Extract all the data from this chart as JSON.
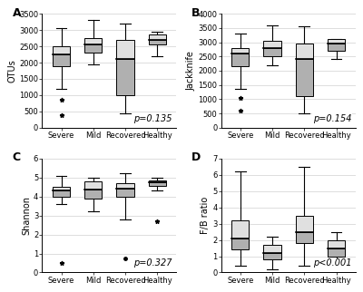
{
  "panels": [
    "A",
    "B",
    "C",
    "D"
  ],
  "categories": [
    "Severe",
    "Mild",
    "Recovered",
    "Healthy"
  ],
  "A": {
    "ylabel": "OTUs",
    "ylim": [
      0,
      3500
    ],
    "yticks": [
      0,
      500,
      1000,
      1500,
      2000,
      2500,
      3000,
      3500
    ],
    "pvalue": "p=0.135",
    "boxes": [
      {
        "q1": 1900,
        "median": 2250,
        "q3": 2500,
        "whislo": 1200,
        "whishi": 3050,
        "fliers": [
          850,
          400
        ],
        "flier_markers": [
          "*",
          "*"
        ]
      },
      {
        "q1": 2300,
        "median": 2550,
        "q3": 2750,
        "whislo": 1950,
        "whishi": 3300,
        "fliers": [],
        "flier_markers": []
      },
      {
        "q1": 1000,
        "median": 2100,
        "q3": 2700,
        "whislo": 450,
        "whishi": 3200,
        "fliers": [],
        "flier_markers": []
      },
      {
        "q1": 2550,
        "median": 2700,
        "q3": 2850,
        "whislo": 2200,
        "whishi": 2950,
        "fliers": [],
        "flier_markers": []
      }
    ]
  },
  "B": {
    "ylabel": "Jackknife",
    "ylim": [
      0,
      4000
    ],
    "yticks": [
      0,
      500,
      1000,
      1500,
      2000,
      2500,
      3000,
      3500,
      4000
    ],
    "pvalue": "p=0.154",
    "boxes": [
      {
        "q1": 2150,
        "median": 2600,
        "q3": 2800,
        "whislo": 1350,
        "whishi": 3300,
        "fliers": [
          1050,
          600
        ],
        "flier_markers": [
          "*",
          "*"
        ]
      },
      {
        "q1": 2500,
        "median": 2800,
        "q3": 3050,
        "whislo": 2200,
        "whishi": 3600,
        "fliers": [],
        "flier_markers": []
      },
      {
        "q1": 1100,
        "median": 2400,
        "q3": 2950,
        "whislo": 500,
        "whishi": 3550,
        "fliers": [],
        "flier_markers": []
      },
      {
        "q1": 2700,
        "median": 2950,
        "q3": 3100,
        "whislo": 2400,
        "whishi": 3100,
        "fliers": [],
        "flier_markers": []
      }
    ]
  },
  "C": {
    "ylabel": "Shannon",
    "ylim": [
      0,
      6
    ],
    "yticks": [
      0,
      1,
      2,
      3,
      4,
      5,
      6
    ],
    "pvalue": "p=0.327",
    "boxes": [
      {
        "q1": 4.0,
        "median": 4.3,
        "q3": 4.5,
        "whislo": 3.6,
        "whishi": 5.1,
        "fliers": [
          0.5
        ],
        "flier_markers": [
          "*"
        ]
      },
      {
        "q1": 3.9,
        "median": 4.35,
        "q3": 4.8,
        "whislo": 3.2,
        "whishi": 5.0,
        "fliers": [],
        "flier_markers": []
      },
      {
        "q1": 4.0,
        "median": 4.4,
        "q3": 4.7,
        "whislo": 2.8,
        "whishi": 5.2,
        "fliers": [
          0.75
        ],
        "flier_markers": [
          "o"
        ]
      },
      {
        "q1": 4.55,
        "median": 4.75,
        "q3": 4.85,
        "whislo": 4.3,
        "whishi": 5.0,
        "fliers": [
          2.7
        ],
        "flier_markers": [
          "*"
        ]
      }
    ]
  },
  "D": {
    "ylabel": "F/B ratio",
    "ylim": [
      0,
      7
    ],
    "yticks": [
      0,
      1,
      2,
      3,
      4,
      5,
      6,
      7
    ],
    "pvalue": "p<0.001",
    "boxes": [
      {
        "q1": 1.4,
        "median": 2.1,
        "q3": 3.2,
        "whislo": 0.4,
        "whishi": 6.2,
        "fliers": [],
        "flier_markers": []
      },
      {
        "q1": 0.8,
        "median": 1.2,
        "q3": 1.7,
        "whislo": 0.2,
        "whishi": 2.2,
        "fliers": [],
        "flier_markers": []
      },
      {
        "q1": 1.8,
        "median": 2.5,
        "q3": 3.5,
        "whislo": 0.4,
        "whishi": 6.5,
        "fliers": [],
        "flier_markers": []
      },
      {
        "q1": 1.0,
        "median": 1.5,
        "q3": 2.0,
        "whislo": 0.4,
        "whishi": 2.5,
        "fliers": [],
        "flier_markers": []
      }
    ]
  },
  "box_facecolor_lower": "#b0b0b0",
  "box_facecolor_upper": "#e0e0e0",
  "median_color": "#000000",
  "whisker_color": "#000000",
  "cap_color": "#000000",
  "flier_color": "#000000",
  "grid_color": "#d0d0d0",
  "background_color": "#ffffff",
  "label_fontsize": 7,
  "tick_fontsize": 6,
  "pvalue_fontsize": 7,
  "panel_label_fontsize": 9
}
